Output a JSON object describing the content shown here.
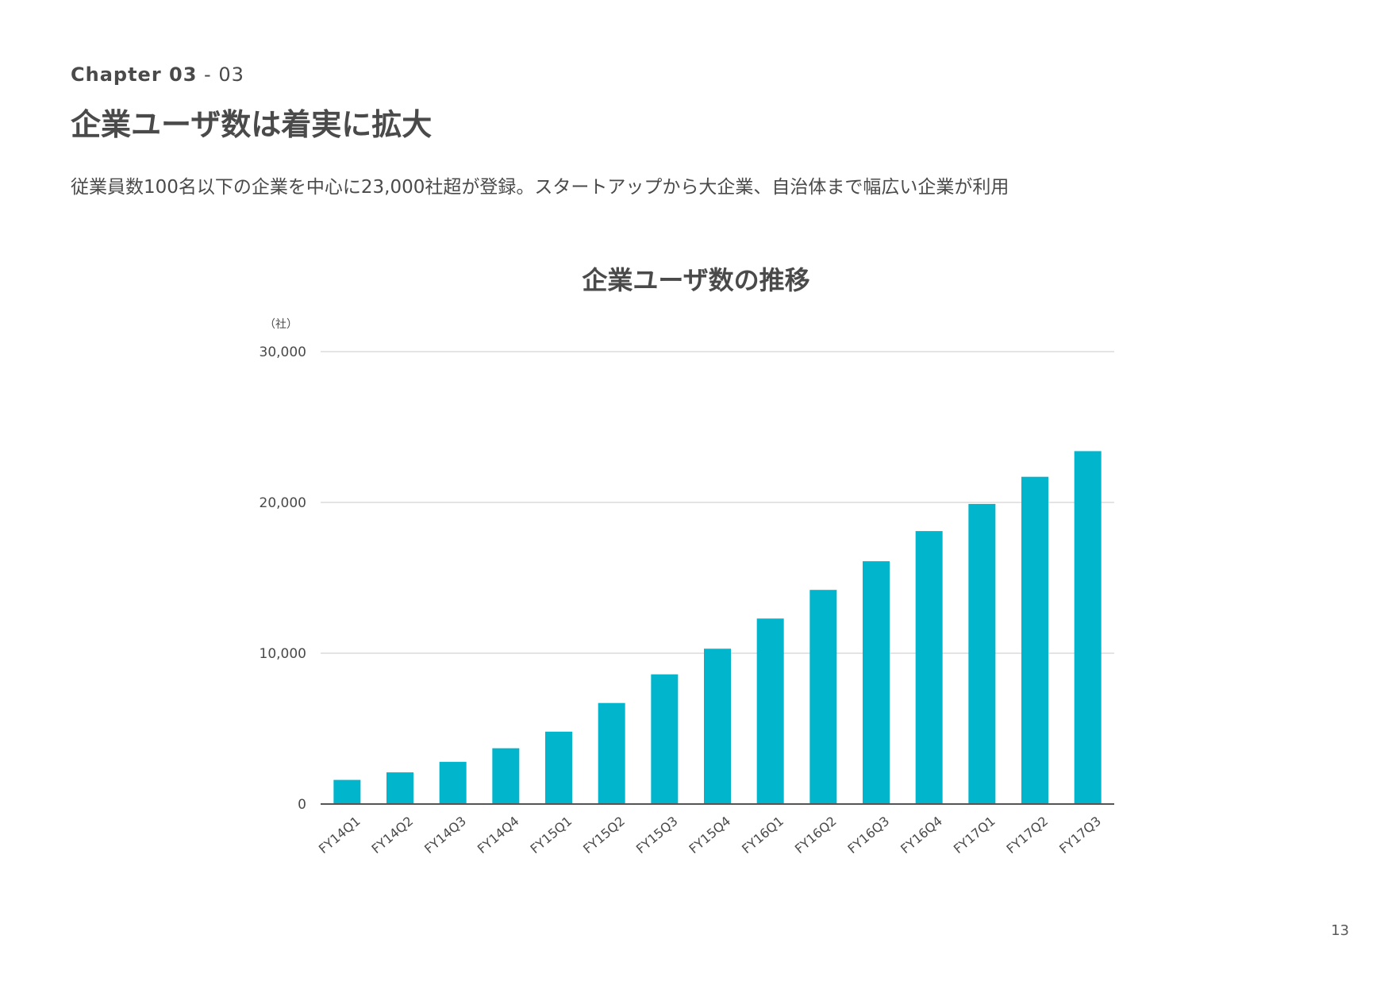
{
  "header": {
    "chapter_label": "Chapter 03",
    "chapter_separator": " - ",
    "chapter_number": "03",
    "title": "企業ユーザ数は着実に拡大",
    "lead": "従業員数100名以下の企業を中心に23,000社超が登録。スタートアップから大企業、自治体まで幅広い企業が利用"
  },
  "page_number": "13",
  "colors": {
    "accent": "#00B5CC",
    "text": "#4a4a4a",
    "grid": "#c8c8c8",
    "axis": "#555555"
  },
  "chart_data": {
    "type": "bar",
    "title": "企業ユーザ数の推移",
    "unit_label": "（社）",
    "xlabel": "",
    "ylabel": "",
    "ylim": [
      0,
      30000
    ],
    "yticks": [
      0,
      10000,
      20000,
      30000
    ],
    "ytick_labels": [
      "0",
      "10,000",
      "20,000",
      "30,000"
    ],
    "grid": true,
    "legend": "none",
    "categories": [
      "FY14Q1",
      "FY14Q2",
      "FY14Q3",
      "FY14Q4",
      "FY15Q1",
      "FY15Q2",
      "FY15Q3",
      "FY15Q4",
      "FY16Q1",
      "FY16Q2",
      "FY16Q3",
      "FY16Q4",
      "FY17Q1",
      "FY17Q2",
      "FY17Q3"
    ],
    "values": [
      1600,
      2100,
      2800,
      3700,
      4800,
      6700,
      8600,
      10300,
      12300,
      14200,
      16100,
      18100,
      19900,
      21700,
      23400
    ]
  }
}
